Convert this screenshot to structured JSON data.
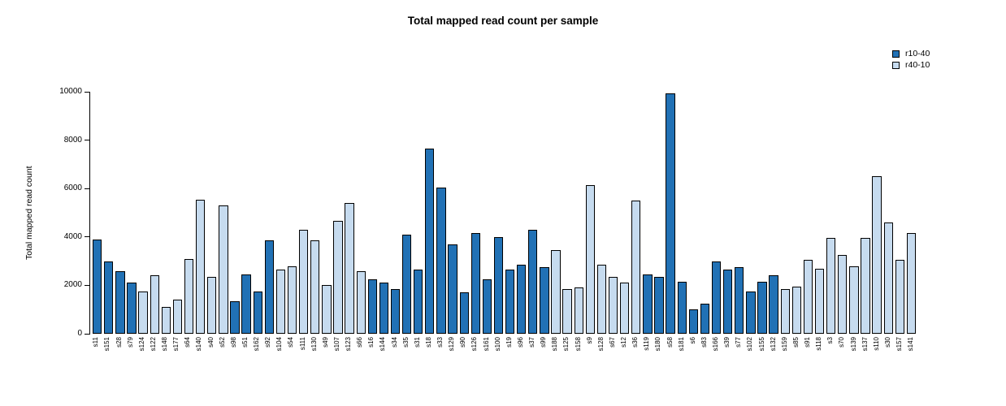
{
  "title": "Total mapped read count per sample",
  "y_axis": {
    "label": "Total mapped read count",
    "ticks": [
      0,
      2000,
      4000,
      6000,
      8000,
      10000
    ]
  },
  "legend": [
    {
      "label": "r10-40",
      "color": "#2171B5"
    },
    {
      "label": "r40-10",
      "color": "#C6DBEF"
    }
  ],
  "chart_data": {
    "type": "bar",
    "title": "Total mapped read count per sample",
    "xlabel": "",
    "ylabel": "Total mapped read count",
    "ylim": [
      0,
      10000
    ],
    "grid": false,
    "legend_position": "top-right",
    "categories": [
      "s11",
      "s151",
      "s28",
      "s79",
      "s124",
      "s122",
      "s148",
      "s177",
      "s64",
      "s140",
      "s40",
      "s52",
      "s98",
      "s51",
      "s162",
      "s92",
      "s104",
      "s54",
      "s111",
      "s130",
      "s49",
      "s107",
      "s123",
      "s66",
      "s16",
      "s144",
      "s34",
      "s35",
      "s31",
      "s18",
      "s33",
      "s129",
      "s90",
      "s126",
      "s161",
      "s100",
      "s19",
      "s96",
      "s37",
      "s99",
      "s188",
      "s125",
      "s158",
      "s9",
      "s128",
      "s67",
      "s12",
      "s36",
      "s119",
      "s180",
      "s58",
      "s181",
      "s6",
      "s83",
      "s166",
      "s39",
      "s77",
      "s102",
      "s155",
      "s132",
      "s159",
      "s85",
      "s91",
      "s118",
      "s3",
      "s70",
      "s139",
      "s137",
      "s110",
      "s30",
      "s157",
      "s141"
    ],
    "values": [
      3900,
      3000,
      2600,
      2100,
      1750,
      2400,
      1100,
      1400,
      3100,
      5550,
      2350,
      5300,
      1350,
      2450,
      1750,
      3850,
      2650,
      2800,
      4300,
      3850,
      2000,
      4650,
      5400,
      2600,
      2250,
      2100,
      1850,
      4100,
      2650,
      7650,
      6050,
      3700,
      1700,
      4150,
      2250,
      4000,
      2650,
      2850,
      4300,
      2750,
      3450,
      1850,
      1900,
      6150,
      2850,
      2350,
      2100,
      5500,
      2450,
      2350,
      9950,
      2150,
      1000,
      1250,
      3000,
      2650,
      2750,
      1750,
      2150,
      2400,
      1850,
      1950,
      3050,
      2700,
      3950,
      3250,
      2800,
      3950,
      6500,
      4600,
      3050,
      4150
    ],
    "groups": [
      "r10-40",
      "r10-40",
      "r10-40",
      "r10-40",
      "r40-10",
      "r40-10",
      "r40-10",
      "r40-10",
      "r40-10",
      "r40-10",
      "r40-10",
      "r40-10",
      "r10-40",
      "r10-40",
      "r10-40",
      "r10-40",
      "r40-10",
      "r40-10",
      "r40-10",
      "r40-10",
      "r40-10",
      "r40-10",
      "r40-10",
      "r40-10",
      "r10-40",
      "r10-40",
      "r10-40",
      "r10-40",
      "r10-40",
      "r10-40",
      "r10-40",
      "r10-40",
      "r10-40",
      "r10-40",
      "r10-40",
      "r10-40",
      "r10-40",
      "r10-40",
      "r10-40",
      "r10-40",
      "r40-10",
      "r40-10",
      "r40-10",
      "r40-10",
      "r40-10",
      "r40-10",
      "r40-10",
      "r40-10",
      "r10-40",
      "r10-40",
      "r10-40",
      "r10-40",
      "r10-40",
      "r10-40",
      "r10-40",
      "r10-40",
      "r10-40",
      "r10-40",
      "r10-40",
      "r10-40",
      "r40-10",
      "r40-10",
      "r40-10",
      "r40-10",
      "r40-10",
      "r40-10",
      "r40-10",
      "r40-10",
      "r40-10",
      "r40-10",
      "r40-10",
      "r40-10"
    ]
  }
}
